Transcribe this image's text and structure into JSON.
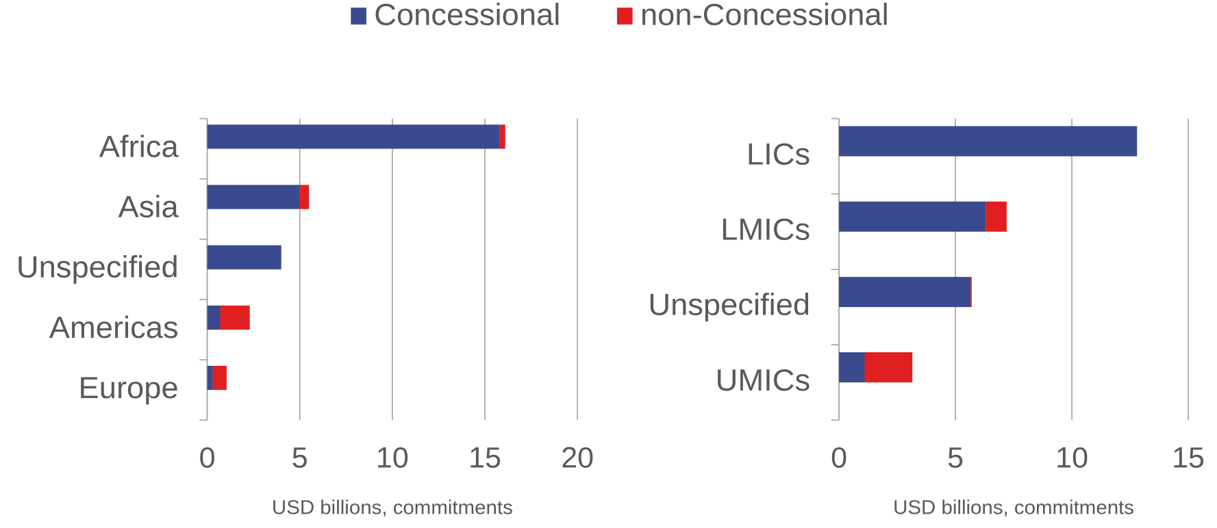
{
  "chart_data": [
    {
      "type": "bar",
      "orientation": "horizontal",
      "stacked": true,
      "categories": [
        "Africa",
        "Asia",
        "Unspecified",
        "Americas",
        "Europe"
      ],
      "series": [
        {
          "name": "Concessional",
          "color": "#3a4a8f",
          "values": [
            15.8,
            5.0,
            4.0,
            0.7,
            0.3
          ]
        },
        {
          "name": "non-Concessional",
          "color": "#e02020",
          "values": [
            0.3,
            0.5,
            0,
            1.6,
            0.75
          ]
        }
      ],
      "xlabel": "USD billions,  commitments",
      "xlim": [
        0,
        20
      ],
      "xticks": [
        0,
        5,
        10,
        15,
        20
      ],
      "grid": true
    },
    {
      "type": "bar",
      "orientation": "horizontal",
      "stacked": true,
      "categories": [
        "LICs",
        "LMICs",
        "Unspecified",
        "UMICs"
      ],
      "series": [
        {
          "name": "Concessional",
          "color": "#3a4a8f",
          "values": [
            12.8,
            6.3,
            5.65,
            1.1
          ]
        },
        {
          "name": "non-Concessional",
          "color": "#e02020",
          "values": [
            0,
            0.9,
            0.05,
            2.05
          ]
        }
      ],
      "xlabel": "USD billions,  commitments",
      "xlim": [
        0,
        15
      ],
      "xticks": [
        0,
        5,
        10,
        15
      ],
      "grid": true
    }
  ]
}
